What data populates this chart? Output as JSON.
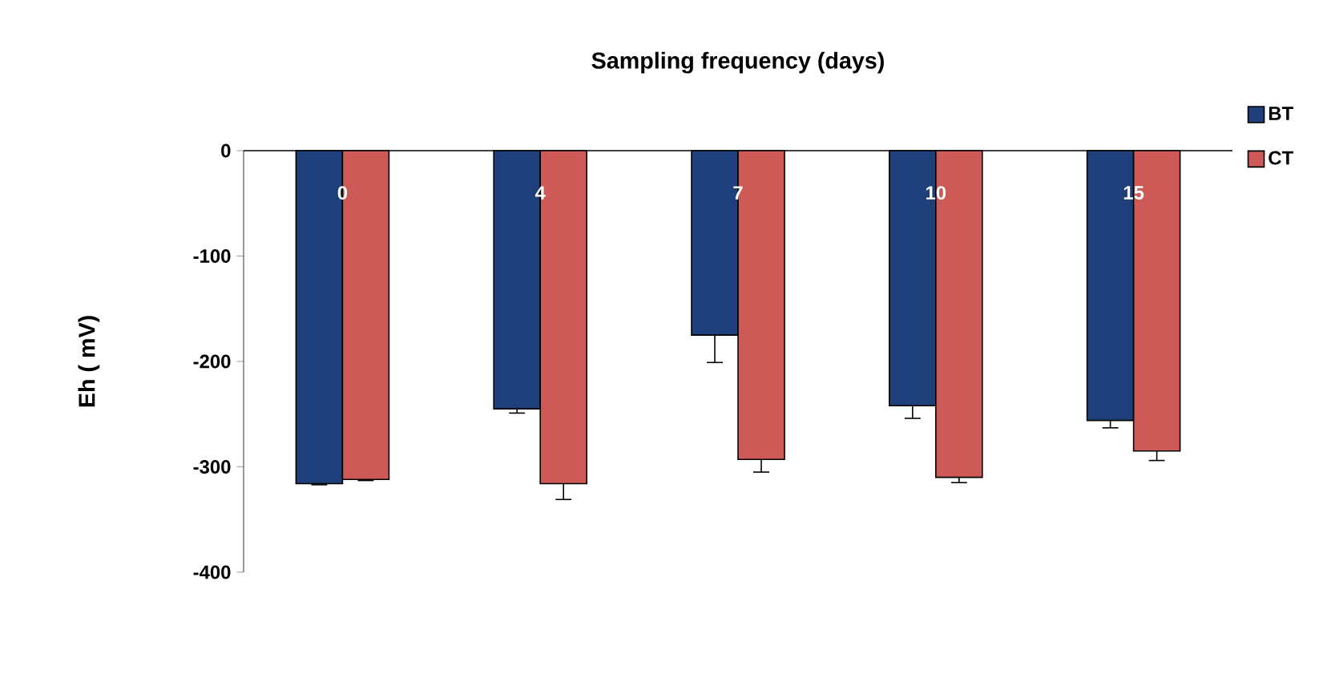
{
  "chart_data": {
    "type": "bar",
    "xlabel": "Sampling frequency (days)",
    "ylabel": "Eh ( mV)",
    "categories": [
      "0",
      "4",
      "7",
      "10",
      "15"
    ],
    "series": [
      {
        "name": "BT",
        "color": "#1f3f7a",
        "values": [
          -316,
          -245,
          -175,
          -242,
          -256
        ],
        "errors": [
          1,
          4,
          26,
          12,
          7
        ]
      },
      {
        "name": "CT",
        "color": "#cd5a57",
        "values": [
          -312,
          -316,
          -293,
          -310,
          -285
        ],
        "errors": [
          1,
          15,
          12,
          5,
          9
        ]
      }
    ],
    "ylim": [
      -400,
      0
    ],
    "yticks": [
      -400,
      -300,
      -200,
      -100,
      0
    ],
    "legend": "top right"
  }
}
